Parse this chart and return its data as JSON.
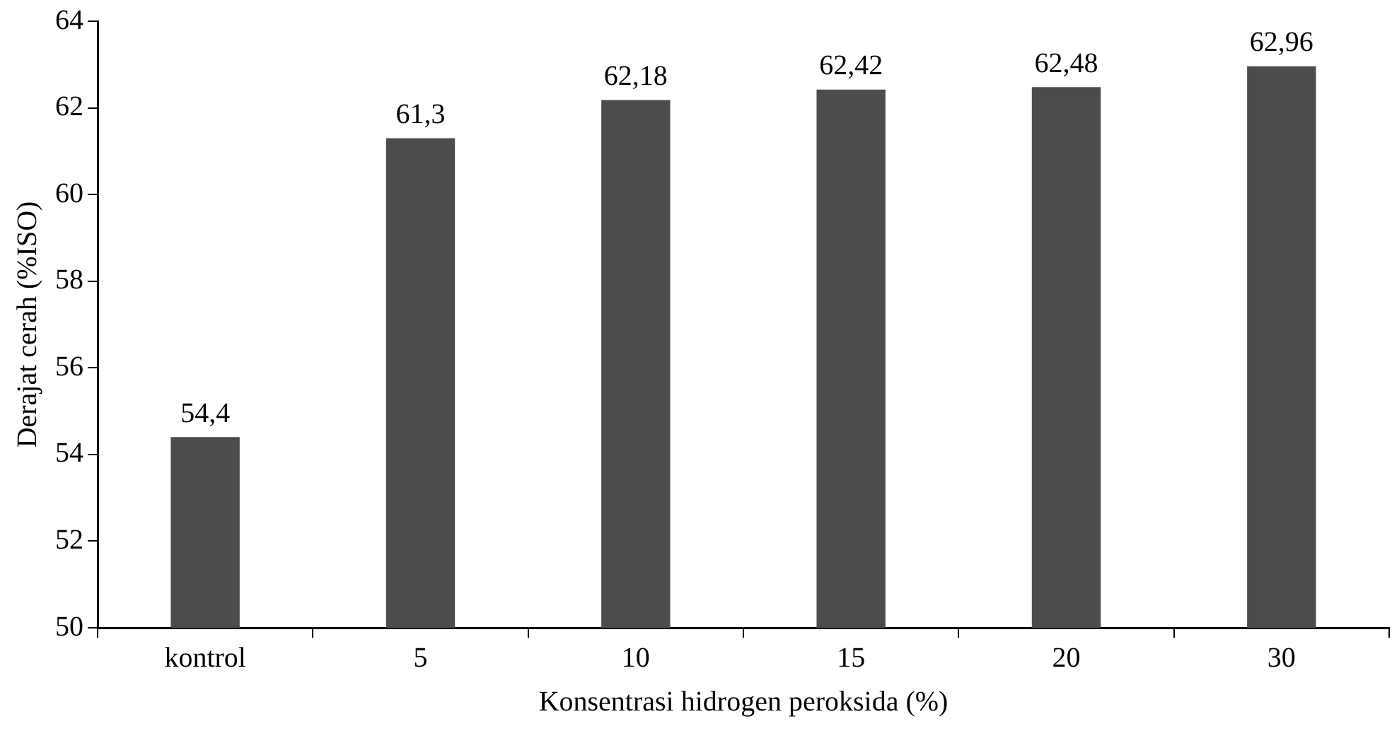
{
  "chart_data": {
    "type": "bar",
    "xlabel": "Konsentrasi hidrogen peroksida (%)",
    "ylabel": "Derajat cerah (%ISO)",
    "categories": [
      "kontrol",
      "5",
      "10",
      "15",
      "20",
      "30"
    ],
    "values": [
      54.4,
      61.3,
      62.18,
      62.42,
      62.48,
      62.96
    ],
    "value_labels": [
      "54,4",
      "61,3",
      "62,18",
      "62,42",
      "62,48",
      "62,96"
    ],
    "color": "#4d4b4c",
    "ylim": [
      50,
      64
    ],
    "yticks": [
      50,
      52,
      54,
      56,
      58,
      60,
      62,
      64
    ],
    "grid": false,
    "legend": false
  }
}
